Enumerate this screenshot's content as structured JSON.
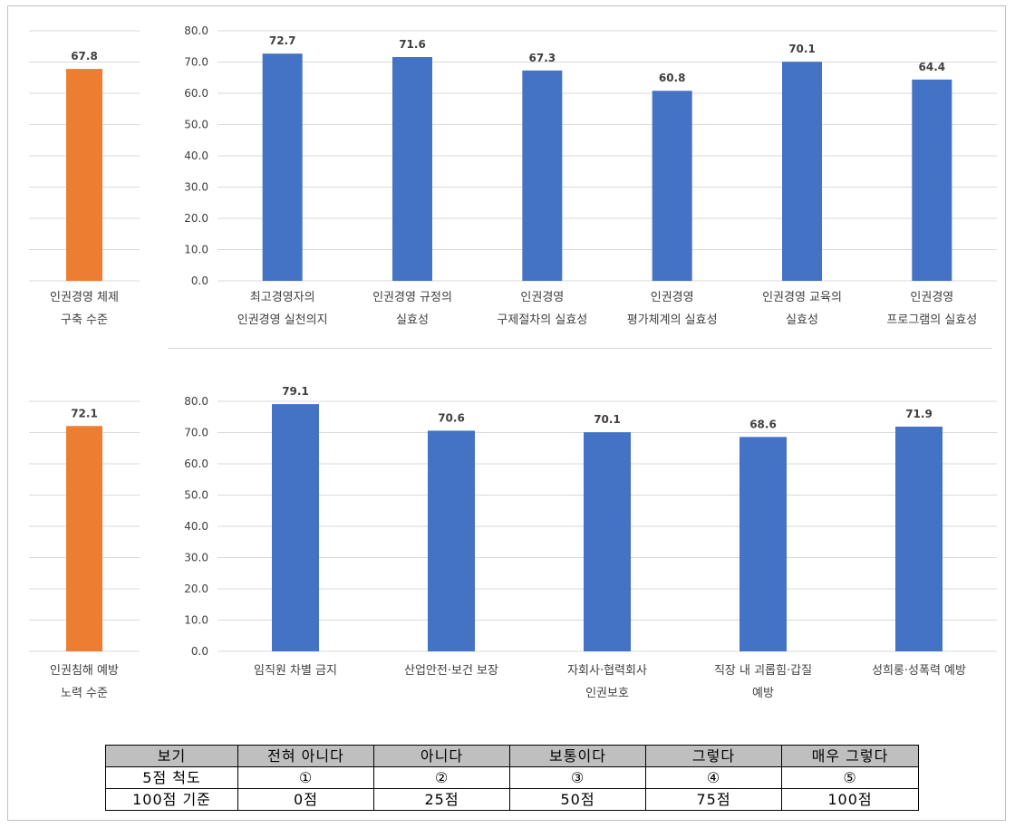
{
  "colors": {
    "total_bar": "#ed7d31",
    "item_bar": "#4472c4",
    "grid": "#d9d9d9",
    "text": "#404040"
  },
  "chart_data": [
    {
      "type": "bar",
      "title": "",
      "categories": [
        "인권경영 체제\n구축 수준"
      ],
      "values": [
        67.8
      ],
      "series_color": "#ed7d31",
      "data_labels": [
        "67.8"
      ],
      "ylim": [
        0,
        80
      ],
      "grid": true
    },
    {
      "type": "bar",
      "title": "",
      "categories": [
        "최고경영자의\n인권경영 실천의지",
        "인권경영 규정의\n실효성",
        "인권경영\n구제절차의 실효성",
        "인권경영\n평가체계의 실효성",
        "인권경영 교육의\n실효성",
        "인권경영\n프로그램의 실효성"
      ],
      "values": [
        72.7,
        71.6,
        67.3,
        60.8,
        70.1,
        64.4
      ],
      "data_labels": [
        "72.7",
        "71.6",
        "67.3",
        "60.8",
        "70.1",
        "64.4"
      ],
      "series_color": "#4472c4",
      "yticks": [
        "0.0",
        "10.0",
        "20.0",
        "30.0",
        "40.0",
        "50.0",
        "60.0",
        "70.0",
        "80.0"
      ],
      "ylim": [
        0,
        80
      ],
      "grid": true
    },
    {
      "type": "bar",
      "title": "",
      "categories": [
        "인권침해 예방\n노력 수준"
      ],
      "values": [
        72.1
      ],
      "series_color": "#ed7d31",
      "data_labels": [
        "72.1"
      ],
      "ylim": [
        0,
        80
      ],
      "grid": true
    },
    {
      "type": "bar",
      "title": "",
      "categories": [
        "임직원 차별 금지",
        "산업안전·보건 보장",
        "자회사·협력회사\n인권보호",
        "직장 내 괴롭힘·갑질\n예방",
        "성희롱·성폭력 예방"
      ],
      "values": [
        79.1,
        70.6,
        70.1,
        68.6,
        71.9
      ],
      "data_labels": [
        "79.1",
        "70.6",
        "70.1",
        "68.6",
        "71.9"
      ],
      "series_color": "#4472c4",
      "yticks": [
        "0.0",
        "10.0",
        "20.0",
        "30.0",
        "40.0",
        "50.0",
        "60.0",
        "70.0",
        "80.0"
      ],
      "ylim": [
        0,
        80
      ],
      "grid": true
    }
  ],
  "scale_table": {
    "rows": [
      [
        "보기",
        "전혀 아니다",
        "아니다",
        "보통이다",
        "그렇다",
        "매우 그렇다"
      ],
      [
        "5점 척도",
        "①",
        "②",
        "③",
        "④",
        "⑤"
      ],
      [
        "100점 기준",
        "0점",
        "25점",
        "50점",
        "75점",
        "100점"
      ]
    ]
  }
}
